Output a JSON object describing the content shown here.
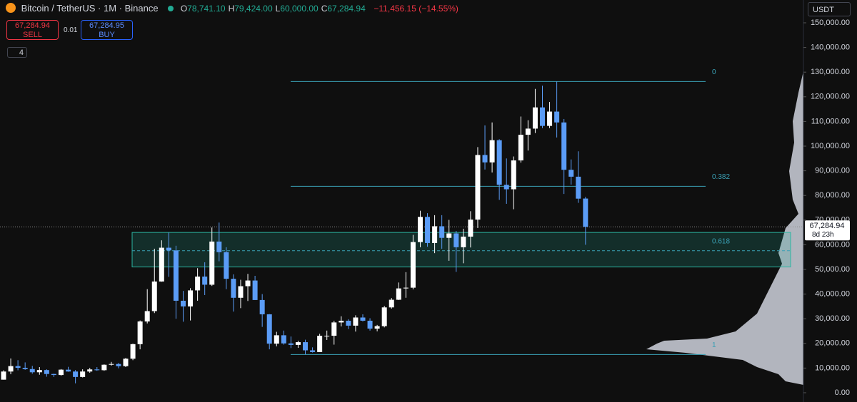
{
  "header": {
    "symbol": "Bitcoin / TetherUS · 1M · Binance",
    "ohlc": [
      {
        "key": "O",
        "value": "78,741.10"
      },
      {
        "key": "H",
        "value": "79,424.00"
      },
      {
        "key": "L",
        "value": "60,000.00"
      },
      {
        "key": "C",
        "value": "67,284.94"
      }
    ],
    "change": "−11,456.15 (−14.55%)"
  },
  "trade": {
    "sell_price": "67,284.94",
    "sell": "SELL",
    "qty": "0.01",
    "buy_price": "67,284.95",
    "buy": "BUY"
  },
  "indicators": "4",
  "currency": "USDT",
  "last_price": {
    "label": "67,284.94",
    "countdown": "8d 23h"
  },
  "chart_data": {
    "type": "candlestick",
    "up_color": "#ffffff",
    "down_color": "#5b9cf6",
    "open": [
      5.3,
      8.6,
      10.8,
      10.1,
      9.6,
      8.3,
      9.2,
      7.6,
      7.2,
      9.35,
      8.6,
      6.4,
      8.6,
      9.45,
      9.14,
      11.35,
      11.65,
      10.78,
      13.8,
      19.7,
      28.9,
      33.1,
      45.1,
      58.8,
      57.7,
      37.3,
      35.0,
      41.5,
      47.1,
      43.8,
      61.3,
      57.0,
      46.2,
      38.5,
      43.2,
      45.5,
      37.6,
      31.8,
      19.9,
      23.3,
      20.0,
      19.4,
      20.5,
      17.2,
      16.5,
      23.1,
      23.1,
      28.5,
      29.2,
      27.2,
      30.5,
      29.2,
      26.0,
      27.0,
      34.6,
      37.7,
      42.3,
      42.6,
      61.1,
      71.3,
      60.7,
      67.5,
      62.8,
      64.6,
      59.0,
      63.3,
      70.2,
      96.4,
      93.4,
      102.4,
      84.3,
      82.5,
      94.2,
      104.6,
      107.1,
      115.7,
      108.2,
      114.0,
      109.6,
      90.4,
      87.6,
      78.7411
    ],
    "high": [
      9.1,
      13.9,
      13.2,
      12.3,
      10.9,
      10.4,
      9.5,
      7.7,
      9.6,
      10.5,
      9.2,
      9.5,
      10.1,
      10.4,
      11.5,
      12.5,
      12.1,
      14.1,
      19.9,
      29.3,
      42.0,
      58.4,
      61.8,
      64.9,
      59.6,
      41.3,
      42.4,
      50.5,
      52.9,
      67.0,
      69.0,
      59.0,
      48.0,
      45.8,
      48.2,
      47.4,
      40.0,
      31.9,
      24.7,
      25.2,
      22.8,
      21.1,
      21.5,
      18.4,
      23.9,
      25.2,
      29.2,
      31.0,
      29.8,
      31.4,
      31.8,
      30.2,
      27.5,
      35.2,
      38.4,
      44.7,
      48.9,
      64.0,
      73.8,
      72.8,
      72.0,
      72.0,
      70.1,
      65.6,
      66.5,
      73.6,
      99.6,
      108.4,
      109.6,
      102.8,
      95.0,
      95.8,
      112.0,
      110.5,
      123.2,
      124.5,
      117.9,
      126.2,
      111.0,
      94.6,
      97.9,
      79.424
    ],
    "low": [
      5.3,
      7.5,
      9.1,
      9.3,
      7.7,
      7.3,
      6.5,
      6.4,
      6.9,
      8.5,
      3.8,
      6.2,
      8.1,
      8.9,
      8.9,
      11.0,
      9.9,
      10.4,
      13.2,
      17.6,
      28.1,
      32.3,
      45.0,
      47.0,
      30.0,
      28.8,
      29.3,
      37.3,
      39.6,
      43.3,
      53.3,
      42.0,
      32.9,
      34.3,
      37.2,
      37.6,
      26.7,
      17.6,
      18.8,
      19.5,
      18.1,
      18.2,
      15.5,
      16.3,
      16.5,
      21.4,
      19.5,
      26.9,
      25.8,
      24.8,
      28.9,
      25.2,
      24.9,
      26.5,
      34.1,
      37.6,
      38.5,
      41.9,
      59.0,
      59.2,
      56.6,
      58.4,
      53.5,
      49.0,
      52.5,
      58.9,
      66.8,
      90.5,
      89.3,
      78.2,
      76.6,
      74.4,
      93.3,
      98.2,
      105.3,
      107.3,
      107.3,
      103.5,
      80.6,
      84.4,
      77.0,
      60.0
    ],
    "close": [
      8.6,
      10.8,
      10.1,
      9.6,
      8.3,
      9.2,
      7.6,
      7.2,
      9.35,
      8.6,
      6.4,
      8.6,
      9.45,
      9.14,
      11.35,
      11.65,
      10.78,
      13.8,
      19.7,
      28.9,
      33.1,
      45.1,
      58.8,
      57.7,
      37.3,
      35.0,
      41.5,
      47.1,
      43.8,
      61.3,
      57.0,
      46.2,
      38.5,
      43.2,
      45.5,
      37.6,
      31.8,
      19.9,
      23.3,
      20.0,
      19.4,
      20.5,
      17.2,
      16.5,
      23.1,
      23.1,
      28.5,
      29.2,
      27.2,
      30.5,
      29.2,
      26.0,
      27.0,
      34.6,
      37.7,
      42.3,
      42.6,
      61.1,
      71.3,
      60.7,
      67.5,
      62.8,
      64.6,
      59.0,
      63.3,
      70.2,
      96.4,
      93.4,
      102.4,
      84.3,
      82.5,
      94.2,
      104.6,
      107.1,
      115.7,
      108.2,
      114.0,
      109.6,
      90.4,
      87.6,
      78.7,
      67.28494
    ],
    "value_scale": 1000,
    "ylim": [
      0,
      150000
    ],
    "yticks": [
      {
        "value": 0,
        "label": "0.00"
      },
      {
        "value": 10000,
        "label": "10,000.00"
      },
      {
        "value": 20000,
        "label": "20,000.00"
      },
      {
        "value": 30000,
        "label": "30,000.00"
      },
      {
        "value": 40000,
        "label": "40,000.00"
      },
      {
        "value": 50000,
        "label": "50,000.00"
      },
      {
        "value": 60000,
        "label": "60,000.00"
      },
      {
        "value": 70000,
        "label": "70,000.00"
      },
      {
        "value": 80000,
        "label": "80,000.00"
      },
      {
        "value": 90000,
        "label": "90,000.00"
      },
      {
        "value": 100000,
        "label": "100,000.00"
      },
      {
        "value": 110000,
        "label": "110,000.00"
      },
      {
        "value": 120000,
        "label": "120,000.00"
      },
      {
        "value": 130000,
        "label": "130,000.00"
      },
      {
        "value": 140000,
        "label": "140,000.00"
      },
      {
        "value": 150000,
        "label": "150,000.00"
      }
    ],
    "last_value": 67284.94,
    "fib_levels": [
      {
        "label": "0",
        "price": 126200
      },
      {
        "label": "0.382",
        "price": 83700
      },
      {
        "label": "0.618",
        "price": 57600
      },
      {
        "label": "1",
        "price": 15500
      }
    ],
    "zone": [
      51000,
      65000
    ]
  }
}
